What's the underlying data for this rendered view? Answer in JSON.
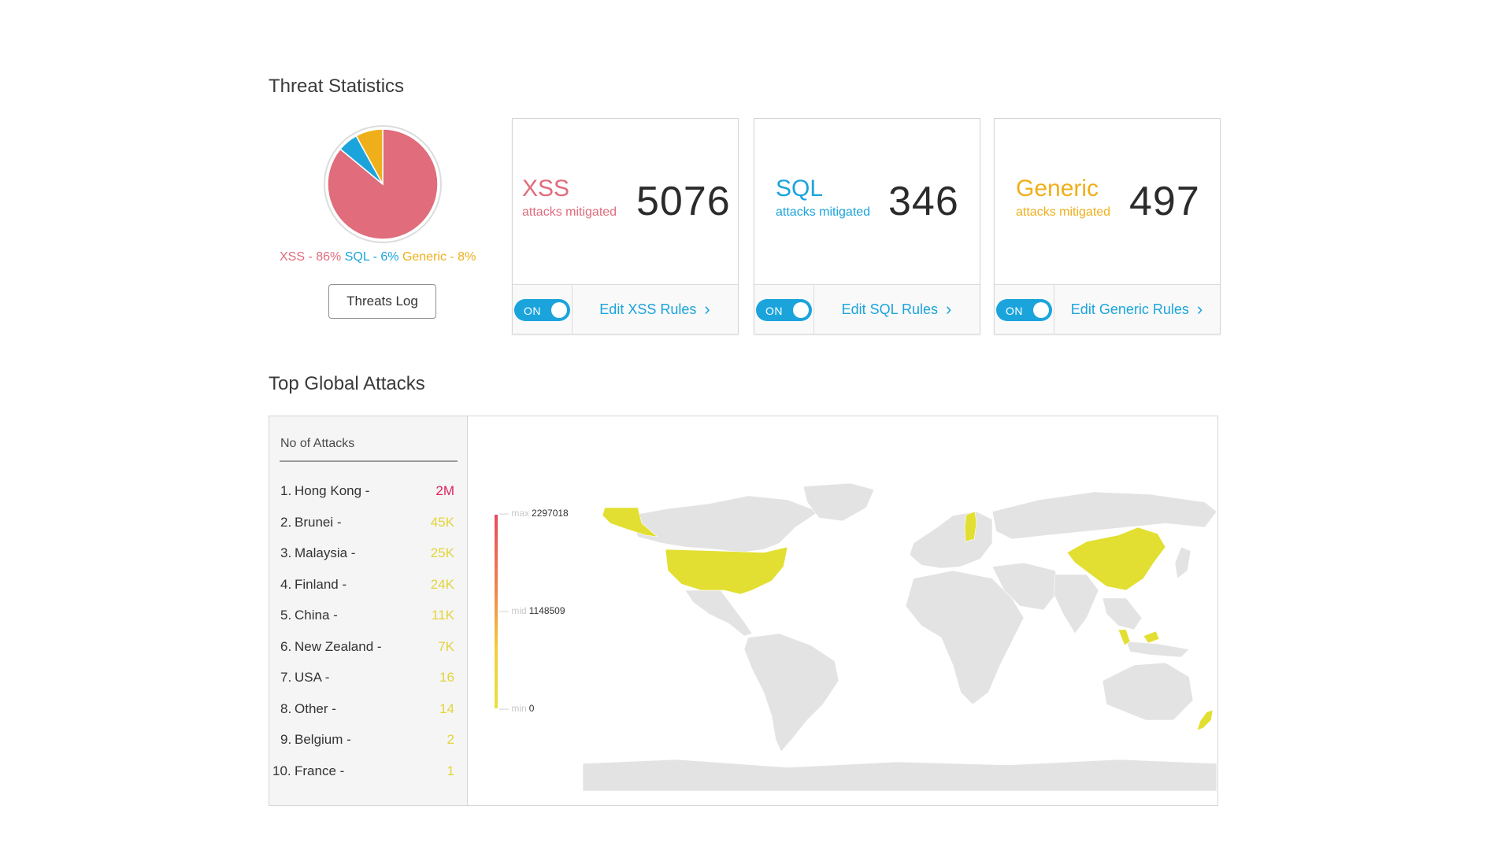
{
  "sections": {
    "threat_statistics": "Threat Statistics",
    "top_global_attacks": "Top Global Attacks"
  },
  "colors": {
    "xss": "#e06c7c",
    "sql": "#1ba4dc",
    "generic": "#efaf1b",
    "accent": "#1ba4dc",
    "map_hit": "#e2df32",
    "map_base": "#e3e3e3"
  },
  "pie": {
    "slices": [
      {
        "name": "XSS",
        "percent": 86,
        "color": "#e06c7c"
      },
      {
        "name": "SQL",
        "percent": 6,
        "color": "#1ba4dc"
      },
      {
        "name": "Generic",
        "percent": 8,
        "color": "#efaf1b"
      }
    ],
    "legend": {
      "xss": "XSS - 86%",
      "sql": "SQL - 6%",
      "generic": "Generic - 8%"
    },
    "button": "Threats Log"
  },
  "cards": [
    {
      "name": "XSS",
      "sub": "attacks mitigated",
      "count": "5076",
      "toggle": "ON",
      "edit": "Edit XSS Rules"
    },
    {
      "name": "SQL",
      "sub": "attacks mitigated",
      "count": "346",
      "toggle": "ON",
      "edit": "Edit SQL Rules"
    },
    {
      "name": "Generic",
      "sub": "attacks mitigated",
      "count": "497",
      "toggle": "ON",
      "edit": "Edit Generic Rules"
    }
  ],
  "attacks": {
    "header": "No of Attacks",
    "rows": [
      {
        "n": "1.",
        "country": "Hong Kong -",
        "value": "2M",
        "color": "#e0245e"
      },
      {
        "n": "2.",
        "country": "Brunei -",
        "value": "45K",
        "color": "#e2d53a"
      },
      {
        "n": "3.",
        "country": "Malaysia -",
        "value": "25K",
        "color": "#e2d53a"
      },
      {
        "n": "4.",
        "country": "Finland -",
        "value": "24K",
        "color": "#e2d53a"
      },
      {
        "n": "5.",
        "country": "China -",
        "value": "11K",
        "color": "#e2d53a"
      },
      {
        "n": "6.",
        "country": "New Zealand -",
        "value": "7K",
        "color": "#e2d53a"
      },
      {
        "n": "7.",
        "country": "USA -",
        "value": "16",
        "color": "#e2d53a"
      },
      {
        "n": "8.",
        "country": "Other -",
        "value": "14",
        "color": "#e2d53a"
      },
      {
        "n": "9.",
        "country": "Belgium -",
        "value": "2",
        "color": "#e2d53a"
      },
      {
        "n": "10.",
        "country": "France -",
        "value": "1",
        "color": "#e2d53a"
      }
    ],
    "legend": {
      "max_label": "max",
      "max": "2297018",
      "mid_label": "mid",
      "mid": "1148509",
      "min_label": "min",
      "min": "0"
    }
  }
}
